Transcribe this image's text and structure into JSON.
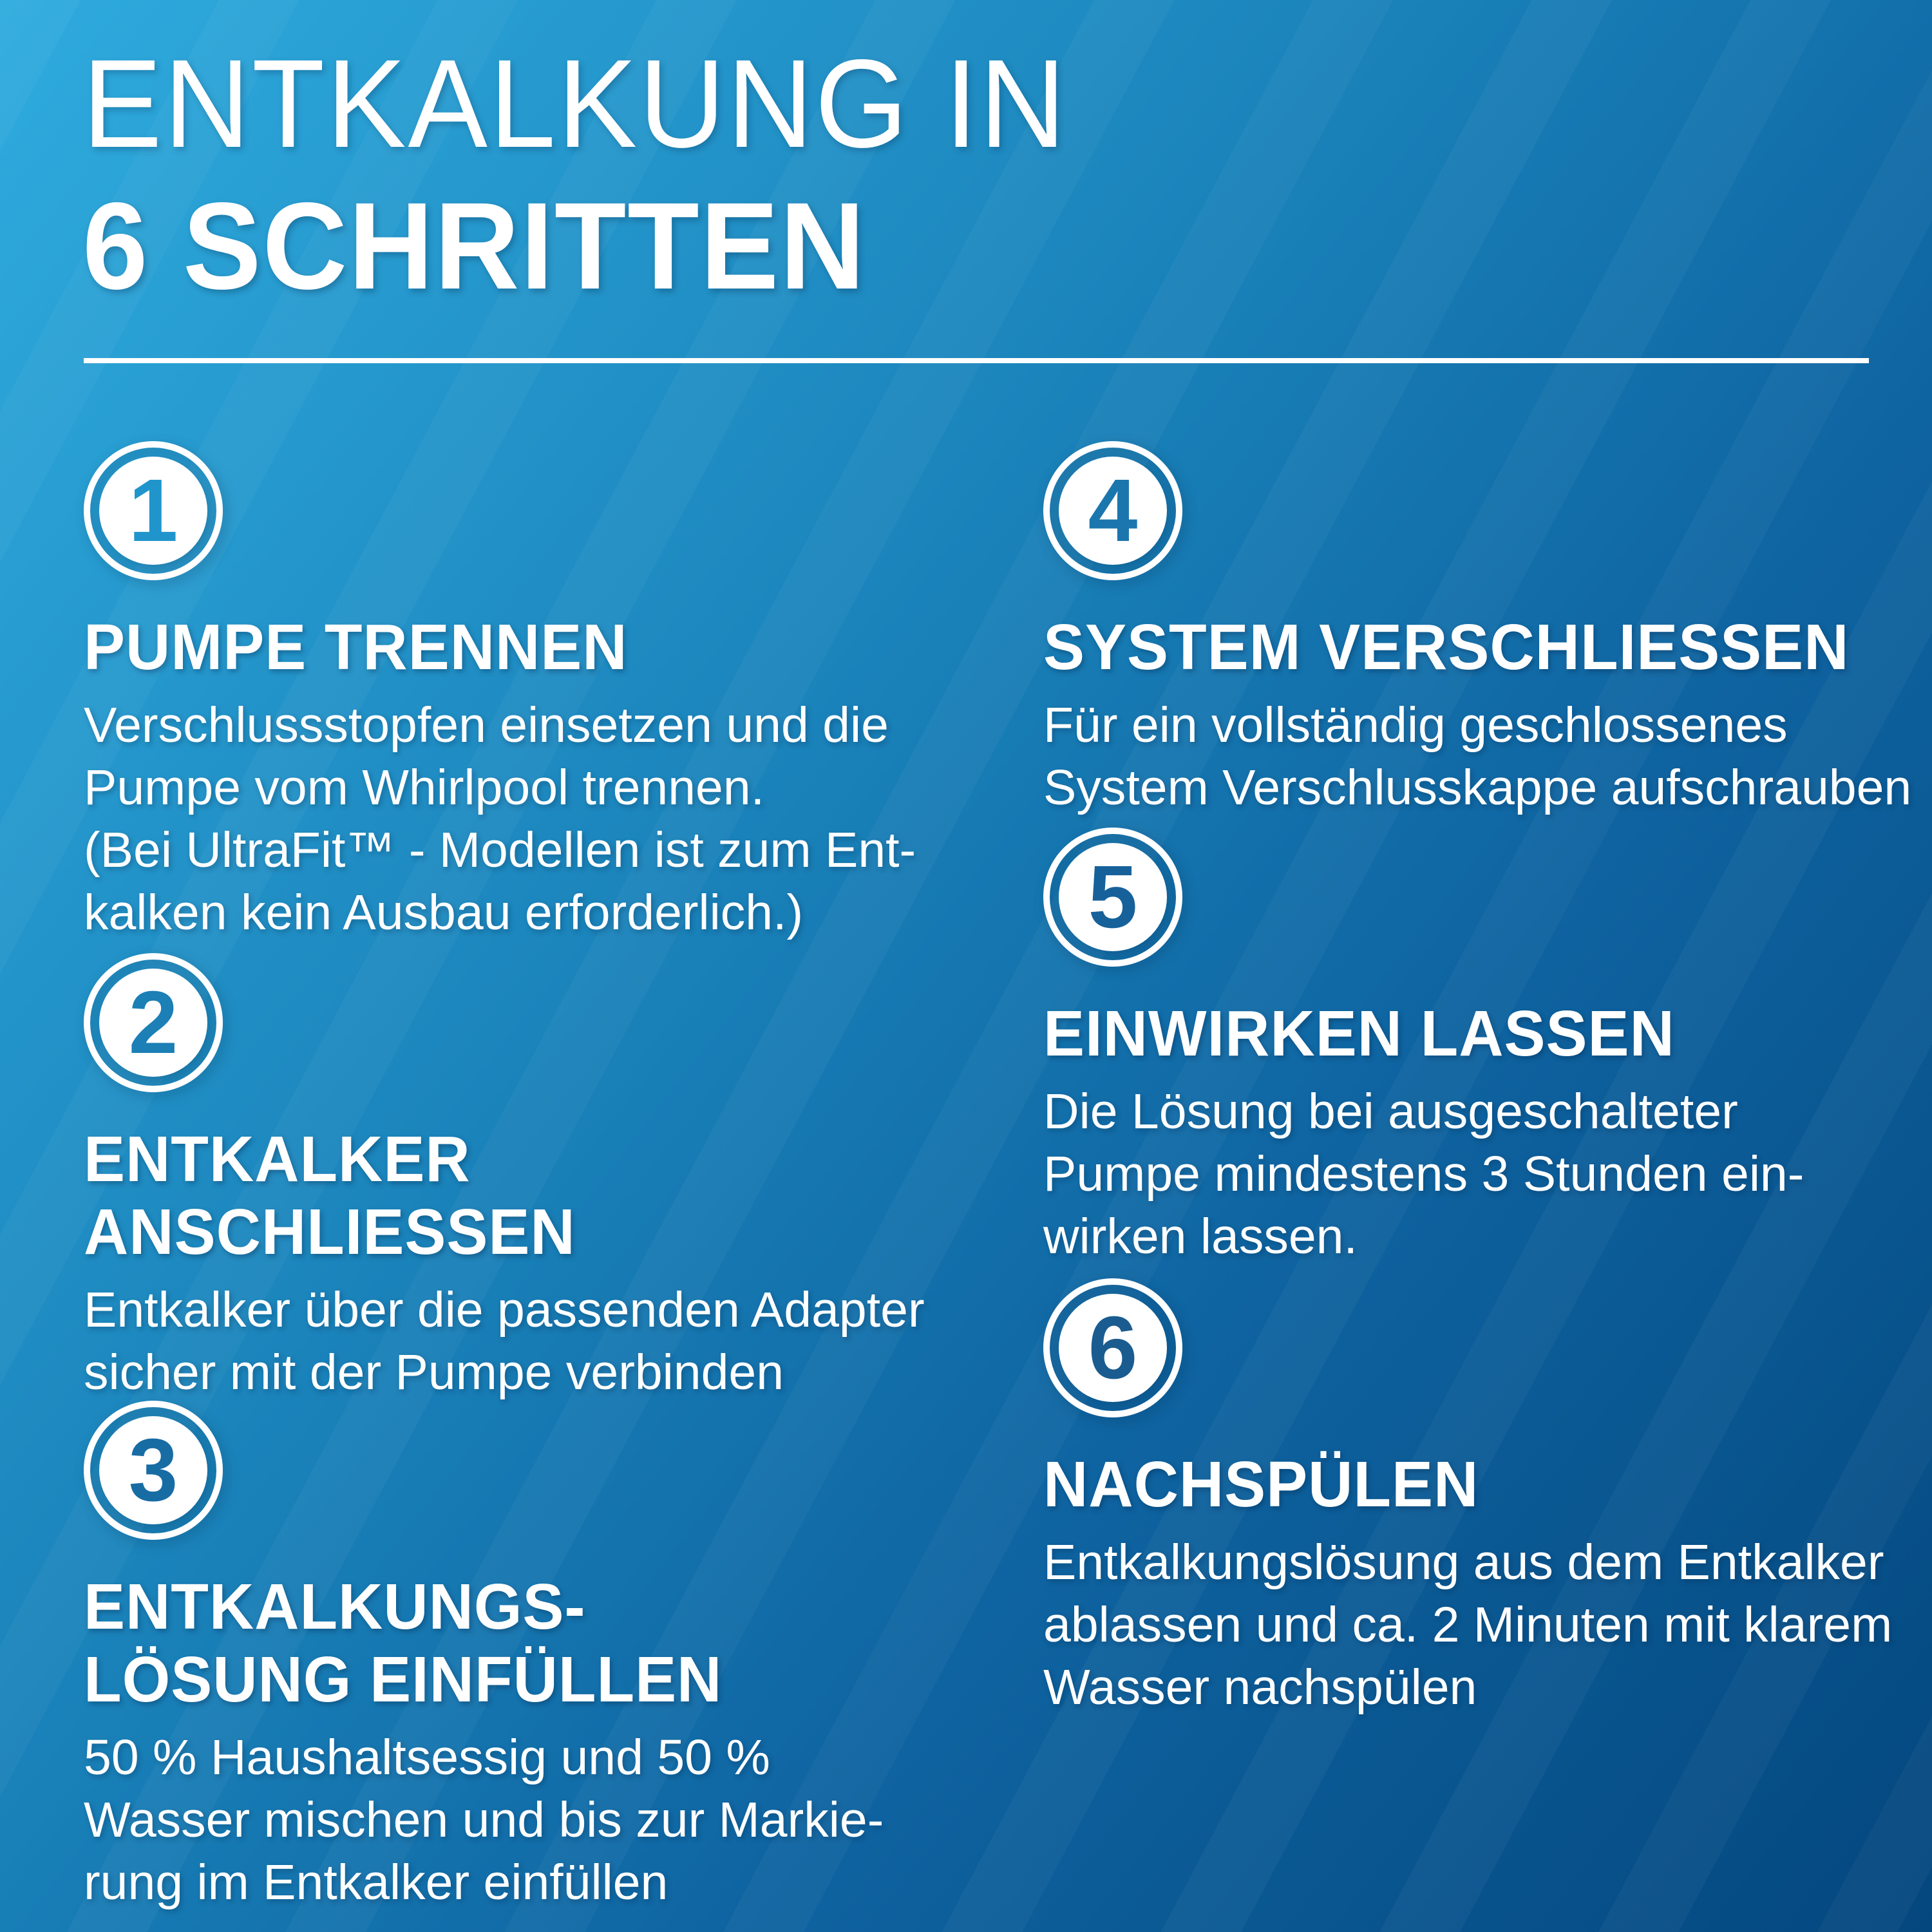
{
  "title": {
    "line1": "ENTKALKUNG IN",
    "line2": "6 SCHRITTEN"
  },
  "colors": {
    "text": "#FFFFFF",
    "background_top_left": "#2FABDE",
    "background_mid1": "#1B85BC",
    "background_mid2": "#0E63A0",
    "background_bottom_right": "#04477E"
  },
  "steps": [
    {
      "number": "1",
      "number_color": "#2095CC",
      "heading": [
        "PUMPE TRENNEN"
      ],
      "body": [
        "Verschlussstopfen einsetzen und die",
        "Pumpe vom Whirlpool trennen.",
        "(Bei UltraFit™ - Modellen ist zum Ent-",
        "kalken kein Ausbau erforderlich.)"
      ]
    },
    {
      "number": "2",
      "number_color": "#1C7FB6",
      "heading": [
        "ENTKALKER",
        "ANSCHLIESSEN"
      ],
      "body": [
        "Entkalker über die passenden Adapter",
        "sicher mit der Pumpe verbinden"
      ]
    },
    {
      "number": "3",
      "number_color": "#186CA4",
      "heading": [
        "ENTKALKUNGS-",
        "LÖSUNG EINFÜLLEN"
      ],
      "body": [
        "50 % Haushaltsessig und 50 %",
        "Wasser mischen und bis zur Markie-",
        "rung im Entkalker einfüllen"
      ]
    },
    {
      "number": "4",
      "number_color": "#1B76AE",
      "heading": [
        "SYSTEM VERSCHLIESSEN"
      ],
      "body": [
        "Für ein vollständig geschlossenes",
        "System Verschlusskappe aufschrauben"
      ]
    },
    {
      "number": "5",
      "number_color": "#16619A",
      "heading": [
        "EINWIRKEN LASSEN"
      ],
      "body": [
        "Die Lösung bei ausgeschalteter",
        "Pumpe mindestens 3 Stunden ein-",
        "wirken lassen."
      ]
    },
    {
      "number": "6",
      "number_color": "#1A5C8F",
      "heading": [
        "NACHSPÜLEN"
      ],
      "body": [
        "Entkalkungslösung aus dem Entkalker",
        "ablassen und ca. 2 Minuten mit klarem",
        "Wasser nachspülen"
      ]
    }
  ]
}
